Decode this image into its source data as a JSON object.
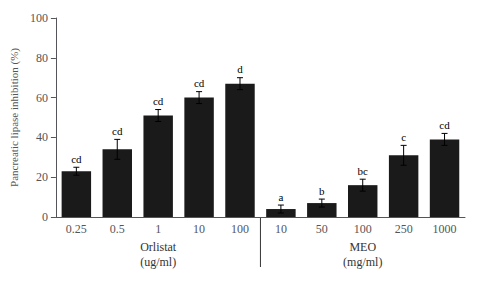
{
  "chart_data": {
    "type": "bar",
    "categories": [
      "0.25",
      "0.5",
      "1",
      "10",
      "100",
      "10",
      "50",
      "100",
      "250",
      "1000"
    ],
    "values": [
      23,
      34,
      51,
      60,
      67,
      4,
      7,
      16,
      31,
      39
    ],
    "errors": [
      2,
      5,
      3,
      3,
      3,
      2,
      2,
      3,
      5,
      3
    ],
    "letters": [
      "cd",
      "cd",
      "cd",
      "cd",
      "d",
      "a",
      "b",
      "bc",
      "c",
      "cd"
    ],
    "groups": [
      {
        "label": "Orlistat",
        "unit": "(ug/ml)",
        "count": 5
      },
      {
        "label": "MEO",
        "unit": "(mg/ml)",
        "count": 5
      }
    ],
    "ylabel": "Pancreatic lipase inhibition (%)",
    "color": "#1a1a1a",
    "ylim": [
      0,
      100
    ],
    "yticks": [
      0,
      20,
      40,
      60,
      80,
      100
    ],
    "grid": false
  }
}
